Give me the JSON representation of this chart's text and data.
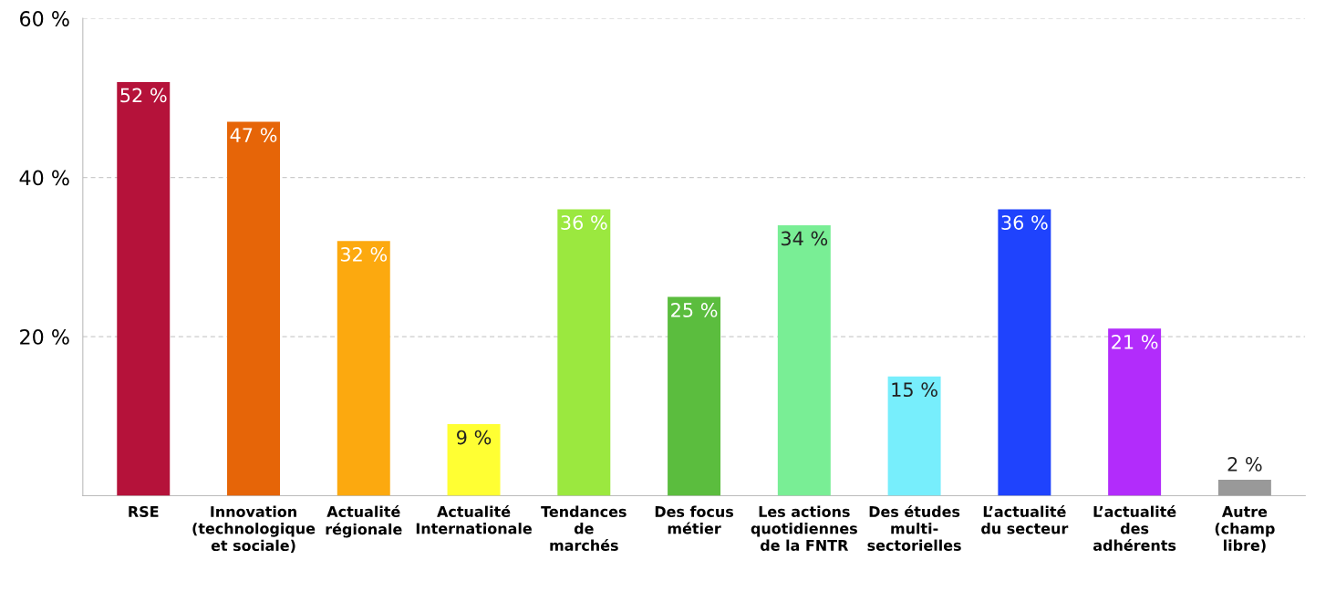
{
  "chart_data": {
    "type": "bar",
    "categories": [
      "RSE",
      "Innovation\n(technologique\net sociale)",
      "Actualité\nrégionale",
      "Actualité\nInternationale",
      "Tendances\nde\nmarchés",
      "Des focus\nmétier",
      "Les actions\nquotidiennes\nde la FNTR",
      "Des études\nmulti-\nsectorielles",
      "L’actualité\ndu secteur",
      "L’actualité\ndes\nadhérents",
      "Autre\n(champ\nlibre)"
    ],
    "values": [
      52,
      47,
      32,
      9,
      36,
      25,
      34,
      15,
      36,
      21,
      2
    ],
    "value_labels": [
      "52 %",
      "47 %",
      "32 %",
      "9 %",
      "36 %",
      "25 %",
      "34 %",
      "15 %",
      "36 %",
      "21 %",
      "2 %"
    ],
    "colors": [
      "#b5123a",
      "#e66508",
      "#fca90f",
      "#ffff33",
      "#9be83f",
      "#5bbd3e",
      "#79ee95",
      "#77eefc",
      "#1f43fd",
      "#b22cfb",
      "#999999"
    ],
    "ylim": [
      0,
      60
    ],
    "yticks": [
      {
        "value": 20,
        "label": "20 %"
      },
      {
        "value": 40,
        "label": "40 %"
      },
      {
        "value": 60,
        "label": "60 %"
      }
    ],
    "grid": "y"
  }
}
